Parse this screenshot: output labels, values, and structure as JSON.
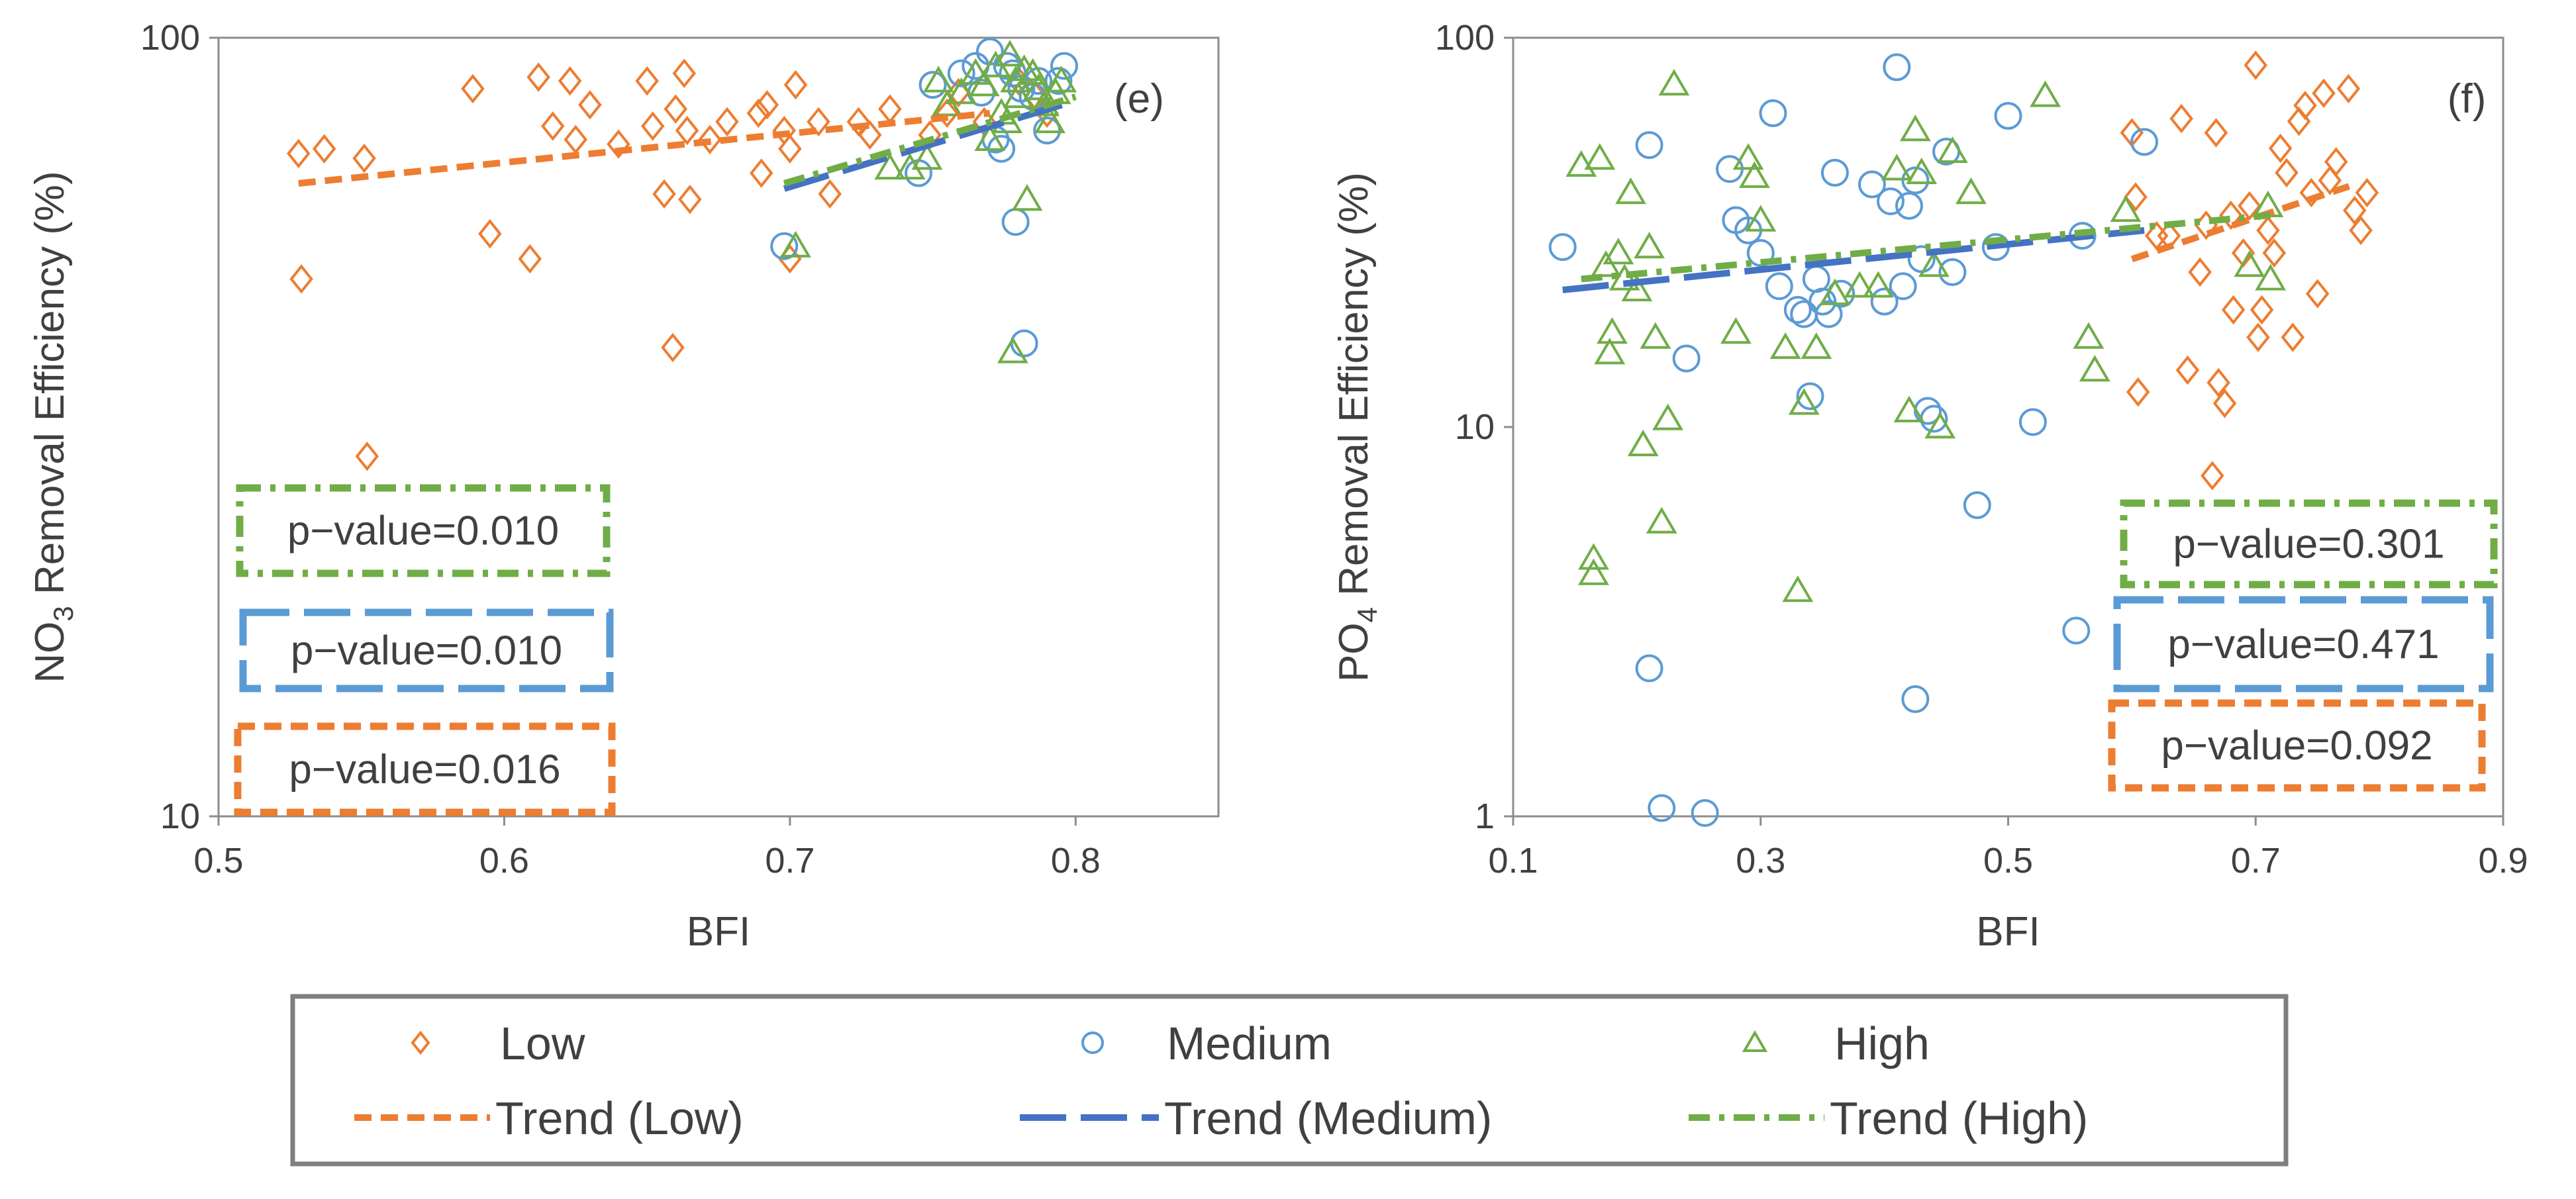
{
  "chart_data": [
    {
      "panel_id": "e",
      "type": "scatter",
      "panel_label": "(e)",
      "xlabel": "BFI",
      "ylabel_main": "NO",
      "ylabel_sub": "3",
      "ylabel_rest": " Removal Efficiency (%)",
      "xlim": [
        0.5,
        0.85
      ],
      "ylim": [
        10,
        100
      ],
      "yscale": "log",
      "xticks": [
        0.5,
        0.6,
        0.7,
        0.8
      ],
      "xtick_labels": [
        "0.5",
        "0.6",
        "0.7",
        "0.8"
      ],
      "yticks": [
        10,
        100
      ],
      "ytick_labels": [
        "10",
        "100"
      ],
      "series": [
        {
          "name": "Low",
          "marker": "diamond",
          "color": "#ED7D31",
          "points": [
            [
              0.528,
              71
            ],
            [
              0.537,
              72
            ],
            [
              0.551,
              70
            ],
            [
              0.529,
              49
            ],
            [
              0.552,
              29
            ],
            [
              0.589,
              86
            ],
            [
              0.595,
              56
            ],
            [
              0.609,
              52
            ],
            [
              0.612,
              89
            ],
            [
              0.617,
              77
            ],
            [
              0.623,
              88
            ],
            [
              0.625,
              74
            ],
            [
              0.63,
              82
            ],
            [
              0.64,
              73
            ],
            [
              0.65,
              88
            ],
            [
              0.652,
              77
            ],
            [
              0.656,
              63
            ],
            [
              0.659,
              40
            ],
            [
              0.66,
              81
            ],
            [
              0.663,
              90
            ],
            [
              0.664,
              76
            ],
            [
              0.665,
              62
            ],
            [
              0.672,
              74
            ],
            [
              0.678,
              78
            ],
            [
              0.689,
              80
            ],
            [
              0.692,
              82
            ],
            [
              0.69,
              67
            ],
            [
              0.698,
              76
            ],
            [
              0.7,
              72
            ],
            [
              0.702,
              87
            ],
            [
              0.7,
              52
            ],
            [
              0.71,
              78
            ],
            [
              0.714,
              63
            ],
            [
              0.724,
              78
            ],
            [
              0.728,
              75
            ],
            [
              0.735,
              81
            ],
            [
              0.749,
              75
            ],
            [
              0.755,
              80
            ],
            [
              0.759,
              85
            ],
            [
              0.768,
              78
            ],
            [
              0.78,
              88
            ],
            [
              0.786,
              84
            ],
            [
              0.79,
              80
            ]
          ]
        },
        {
          "name": "Medium",
          "marker": "circle",
          "color": "#5B9BD5",
          "points": [
            [
              0.698,
              54
            ],
            [
              0.745,
              67
            ],
            [
              0.75,
              87
            ],
            [
              0.76,
              90
            ],
            [
              0.765,
              92
            ],
            [
              0.77,
              96
            ],
            [
              0.772,
              74
            ],
            [
              0.774,
              72
            ],
            [
              0.776,
              92
            ],
            [
              0.779,
              58
            ],
            [
              0.782,
              40.5
            ],
            [
              0.785,
              84
            ],
            [
              0.787,
              88
            ],
            [
              0.79,
              76
            ],
            [
              0.794,
              88
            ],
            [
              0.796,
              92
            ],
            [
              0.778,
              90
            ],
            [
              0.781,
              86
            ],
            [
              0.767,
              85
            ]
          ]
        },
        {
          "name": "High",
          "marker": "triangle",
          "color": "#70AD47",
          "points": [
            [
              0.702,
              54
            ],
            [
              0.735,
              68
            ],
            [
              0.742,
              68
            ],
            [
              0.748,
              70
            ],
            [
              0.752,
              88
            ],
            [
              0.755,
              82
            ],
            [
              0.76,
              85
            ],
            [
              0.765,
              90
            ],
            [
              0.768,
              87
            ],
            [
              0.77,
              74
            ],
            [
              0.772,
              92
            ],
            [
              0.774,
              80
            ],
            [
              0.776,
              78
            ],
            [
              0.777,
              95
            ],
            [
              0.778,
              39.5
            ],
            [
              0.779,
              88
            ],
            [
              0.78,
              84
            ],
            [
              0.782,
              91
            ],
            [
              0.783,
              62
            ],
            [
              0.785,
              90
            ],
            [
              0.787,
              86
            ],
            [
              0.789,
              82
            ],
            [
              0.791,
              78
            ],
            [
              0.793,
              85
            ],
            [
              0.795,
              88
            ]
          ]
        }
      ],
      "trends": [
        {
          "name": "Trend (Low)",
          "style": "dashed",
          "color": "#ED7D31",
          "x": [
            0.528,
            0.77
          ],
          "y": [
            65,
            80
          ]
        },
        {
          "name": "Trend (Medium)",
          "style": "longdash",
          "color": "#4472C4",
          "x": [
            0.698,
            0.8
          ],
          "y": [
            64,
            83
          ]
        },
        {
          "name": "Trend (High)",
          "style": "dashdot",
          "color": "#70AD47",
          "x": [
            0.698,
            0.8
          ],
          "y": [
            65,
            84
          ]
        }
      ],
      "annotations": [
        {
          "text": "p−value=0.010",
          "series": "High",
          "style": "dashdot",
          "color": "#70AD47"
        },
        {
          "text": "p−value=0.010",
          "series": "Medium",
          "style": "longdash",
          "color": "#5B9BD5"
        },
        {
          "text": "p−value=0.016",
          "series": "Low",
          "style": "dashed",
          "color": "#ED7D31"
        }
      ]
    },
    {
      "panel_id": "f",
      "type": "scatter",
      "panel_label": "(f)",
      "xlabel": "BFI",
      "ylabel_main": "PO",
      "ylabel_sub": "4",
      "ylabel_rest": " Removal Efficiency (%)",
      "xlim": [
        0.1,
        0.9
      ],
      "ylim": [
        1,
        100
      ],
      "yscale": "log",
      "xticks": [
        0.1,
        0.3,
        0.5,
        0.7,
        0.9
      ],
      "xtick_labels": [
        "0.1",
        "0.3",
        "0.5",
        "0.7",
        "0.9"
      ],
      "yticks": [
        1,
        10,
        100
      ],
      "ytick_labels": [
        "1",
        "10",
        "100"
      ],
      "series": [
        {
          "name": "Low",
          "marker": "diamond",
          "color": "#ED7D31",
          "points": [
            [
              0.6,
              57
            ],
            [
              0.603,
              39
            ],
            [
              0.605,
              12.3
            ],
            [
              0.62,
              31
            ],
            [
              0.63,
              31
            ],
            [
              0.64,
              62
            ],
            [
              0.645,
              14
            ],
            [
              0.655,
              25
            ],
            [
              0.66,
              33
            ],
            [
              0.665,
              7.5
            ],
            [
              0.668,
              57
            ],
            [
              0.67,
              13
            ],
            [
              0.675,
              11.5
            ],
            [
              0.68,
              35
            ],
            [
              0.682,
              20
            ],
            [
              0.69,
              28
            ],
            [
              0.695,
              37
            ],
            [
              0.7,
              85
            ],
            [
              0.702,
              17
            ],
            [
              0.705,
              20
            ],
            [
              0.71,
              32
            ],
            [
              0.715,
              28
            ],
            [
              0.72,
              52
            ],
            [
              0.725,
              45
            ],
            [
              0.73,
              17
            ],
            [
              0.735,
              61
            ],
            [
              0.74,
              67
            ],
            [
              0.745,
              40
            ],
            [
              0.75,
              22
            ],
            [
              0.755,
              72
            ],
            [
              0.76,
              43
            ],
            [
              0.765,
              48
            ],
            [
              0.775,
              74
            ],
            [
              0.78,
              36
            ],
            [
              0.785,
              32
            ],
            [
              0.79,
              40
            ]
          ]
        },
        {
          "name": "Medium",
          "marker": "circle",
          "color": "#5B9BD5",
          "points": [
            [
              0.14,
              29
            ],
            [
              0.21,
              53
            ],
            [
              0.21,
              2.4
            ],
            [
              0.22,
              1.05
            ],
            [
              0.24,
              15
            ],
            [
              0.255,
              1.02
            ],
            [
              0.275,
              46
            ],
            [
              0.28,
              34
            ],
            [
              0.29,
              32
            ],
            [
              0.3,
              28
            ],
            [
              0.31,
              64
            ],
            [
              0.315,
              23
            ],
            [
              0.33,
              20
            ],
            [
              0.335,
              19.5
            ],
            [
              0.34,
              12
            ],
            [
              0.345,
              24
            ],
            [
              0.35,
              21
            ],
            [
              0.355,
              19.5
            ],
            [
              0.36,
              45
            ],
            [
              0.365,
              22
            ],
            [
              0.39,
              42
            ],
            [
              0.4,
              21
            ],
            [
              0.405,
              38
            ],
            [
              0.41,
              84
            ],
            [
              0.415,
              23
            ],
            [
              0.42,
              37
            ],
            [
              0.425,
              43
            ],
            [
              0.43,
              27
            ],
            [
              0.435,
              11
            ],
            [
              0.44,
              10.5
            ],
            [
              0.45,
              51
            ],
            [
              0.455,
              25
            ],
            [
              0.475,
              6.3
            ],
            [
              0.49,
              29
            ],
            [
              0.5,
              63
            ],
            [
              0.52,
              10.3
            ],
            [
              0.555,
              3
            ],
            [
              0.56,
              31
            ],
            [
              0.61,
              54
            ],
            [
              0.425,
              2
            ]
          ]
        },
        {
          "name": "High",
          "marker": "triangle",
          "color": "#70AD47",
          "points": [
            [
              0.155,
              47
            ],
            [
              0.165,
              4.6
            ],
            [
              0.165,
              4.2
            ],
            [
              0.17,
              49
            ],
            [
              0.175,
              26
            ],
            [
              0.178,
              15.5
            ],
            [
              0.18,
              17.5
            ],
            [
              0.185,
              28
            ],
            [
              0.19,
              24
            ],
            [
              0.195,
              40
            ],
            [
              0.2,
              22.5
            ],
            [
              0.205,
              9
            ],
            [
              0.21,
              29
            ],
            [
              0.215,
              17
            ],
            [
              0.22,
              5.7
            ],
            [
              0.225,
              10.5
            ],
            [
              0.23,
              76
            ],
            [
              0.28,
              17.5
            ],
            [
              0.29,
              49
            ],
            [
              0.295,
              44
            ],
            [
              0.3,
              34
            ],
            [
              0.32,
              16
            ],
            [
              0.33,
              3.8
            ],
            [
              0.335,
              11.5
            ],
            [
              0.345,
              16
            ],
            [
              0.36,
              22
            ],
            [
              0.38,
              23
            ],
            [
              0.395,
              23
            ],
            [
              0.41,
              46
            ],
            [
              0.42,
              11
            ],
            [
              0.425,
              58
            ],
            [
              0.43,
              45
            ],
            [
              0.44,
              26
            ],
            [
              0.445,
              10
            ],
            [
              0.455,
              51
            ],
            [
              0.47,
              40
            ],
            [
              0.53,
              71
            ],
            [
              0.565,
              17
            ],
            [
              0.57,
              14
            ],
            [
              0.595,
              36
            ],
            [
              0.695,
              26
            ],
            [
              0.71,
              37
            ],
            [
              0.712,
              24
            ]
          ]
        }
      ],
      "trends": [
        {
          "name": "Trend (Low)",
          "style": "dashed",
          "color": "#ED7D31",
          "x": [
            0.6,
            0.78
          ],
          "y": [
            27,
            42
          ]
        },
        {
          "name": "Trend (Medium)",
          "style": "longdash",
          "color": "#4472C4",
          "x": [
            0.14,
            0.61
          ],
          "y": [
            22.5,
            32
          ]
        },
        {
          "name": "Trend (High)",
          "style": "dashdot",
          "color": "#70AD47",
          "x": [
            0.155,
            0.712
          ],
          "y": [
            24,
            35
          ]
        }
      ],
      "annotations": [
        {
          "text": "p−value=0.301",
          "series": "High",
          "style": "dashdot",
          "color": "#70AD47"
        },
        {
          "text": "p−value=0.471",
          "series": "Medium",
          "style": "longdash",
          "color": "#5B9BD5"
        },
        {
          "text": "p−value=0.092",
          "series": "Low",
          "style": "dashed",
          "color": "#ED7D31"
        }
      ]
    }
  ],
  "legend": {
    "placement": "bottom",
    "items": [
      {
        "label": "Low",
        "kind": "marker",
        "marker": "diamond",
        "color": "#ED7D31"
      },
      {
        "label": "Medium",
        "kind": "marker",
        "marker": "circle",
        "color": "#5B9BD5"
      },
      {
        "label": "High",
        "kind": "marker",
        "marker": "triangle",
        "color": "#70AD47"
      },
      {
        "label": "Trend (Low)",
        "kind": "line",
        "style": "dashed",
        "color": "#ED7D31"
      },
      {
        "label": "Trend (Medium)",
        "kind": "line",
        "style": "longdash",
        "color": "#4472C4"
      },
      {
        "label": "Trend (High)",
        "kind": "line",
        "style": "dashdot",
        "color": "#70AD47"
      }
    ]
  }
}
